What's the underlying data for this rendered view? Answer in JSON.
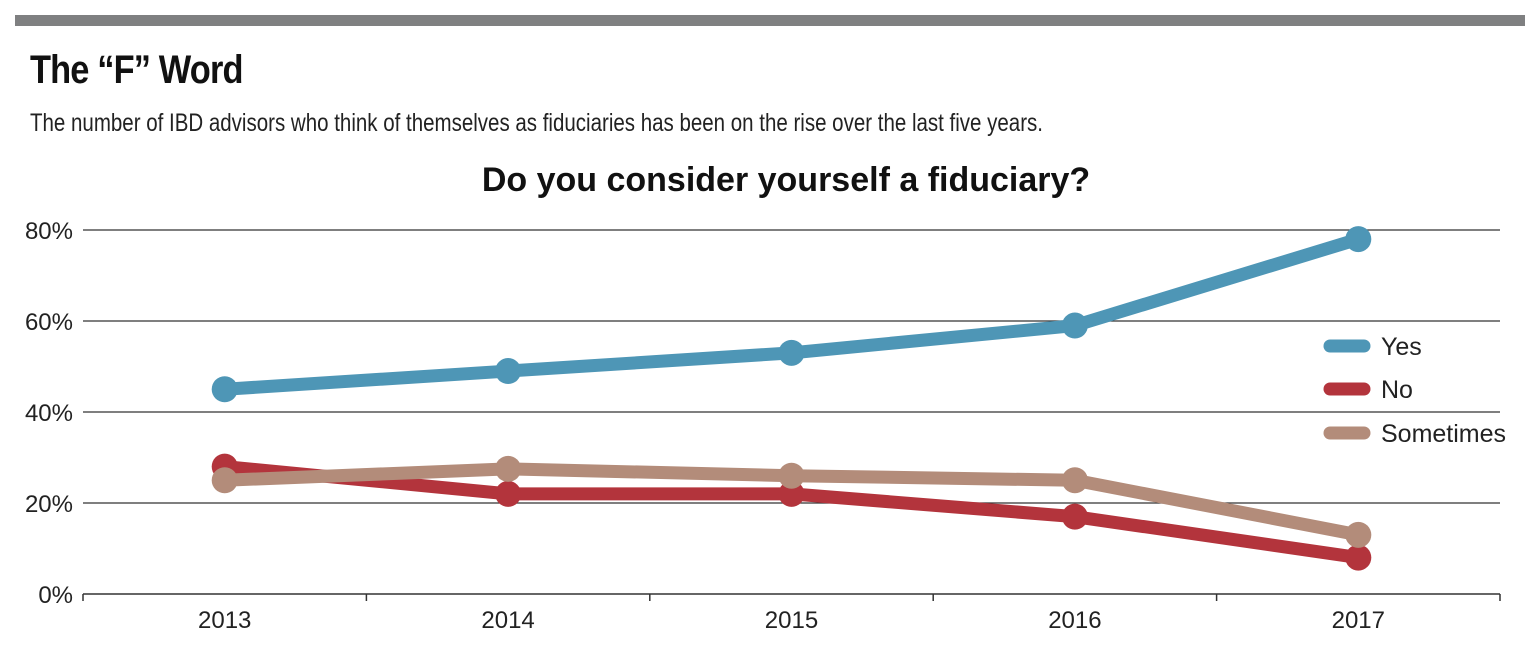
{
  "header": {
    "headline": "The “F” Word",
    "subtitle": "The number of IBD advisors who think of themselves as fiduciaries has been on the rise over the last five years."
  },
  "colors": {
    "rule": "#7f8081",
    "yes": "#4e96b6",
    "no": "#b3343c",
    "sometimes": "#b38c7a",
    "grid": "#333333"
  },
  "chart_data": {
    "type": "line",
    "title": "Do you consider yourself a fiduciary?",
    "xlabel": "",
    "ylabel": "",
    "x": [
      "2013",
      "2014",
      "2015",
      "2016",
      "2017"
    ],
    "ylim": [
      0,
      80
    ],
    "yticks": [
      0,
      20,
      40,
      60,
      80
    ],
    "ytick_labels": [
      "0%",
      "20%",
      "40%",
      "60%",
      "80%"
    ],
    "grid": true,
    "legend_position": "right",
    "series": [
      {
        "name": "Yes",
        "color_key": "yes",
        "values": [
          45,
          49,
          53,
          59,
          78
        ]
      },
      {
        "name": "No",
        "color_key": "no",
        "values": [
          28,
          22,
          22,
          17,
          8
        ]
      },
      {
        "name": "Sometimes",
        "color_key": "sometimes",
        "values": [
          25,
          27.5,
          26,
          25,
          13
        ]
      }
    ]
  }
}
